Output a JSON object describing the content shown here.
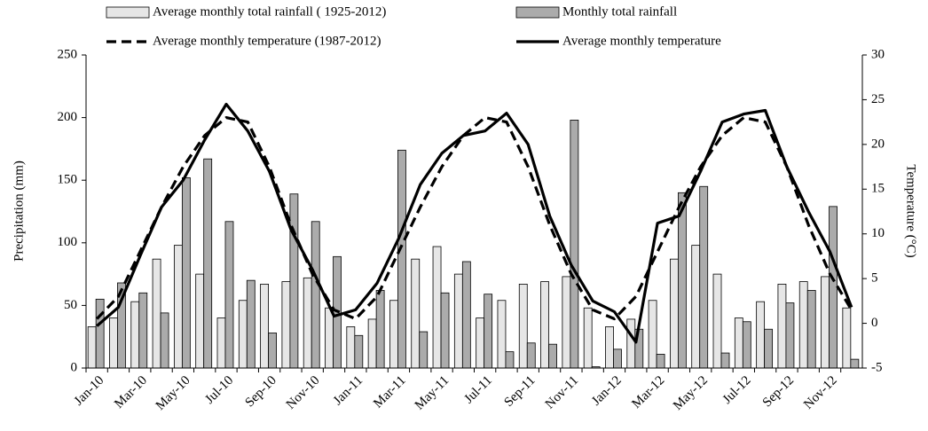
{
  "chart_data": {
    "type": "combo",
    "categories": [
      "Jan-10",
      null,
      "Mar-10",
      null,
      "May-10",
      null,
      "Jul-10",
      null,
      "Sep-10",
      null,
      "Nov-10",
      null,
      "Jan-11",
      null,
      "Mar-11",
      null,
      "May-11",
      null,
      "Jul-11",
      null,
      "Sep-11",
      null,
      "Nov-11",
      null,
      "Jan-12",
      null,
      "Mar-12",
      null,
      "May-12",
      null,
      "Jul-12",
      null,
      "Sep-12",
      null,
      "Nov-12",
      null
    ],
    "ylabel": "Precipitation  (mm)",
    "y2label": "Temperature  (°C)",
    "ylim": [
      0,
      250
    ],
    "yticks": [
      0,
      50,
      100,
      150,
      200,
      250
    ],
    "y2lim": [
      -5,
      30
    ],
    "y2ticks": [
      -5,
      0,
      5,
      10,
      15,
      20,
      25,
      30
    ],
    "series": [
      {
        "name": "Average monthly total rainfall ( 1925-2012)",
        "type": "bar",
        "color": "#e6e6e6",
        "values": [
          33,
          40,
          53,
          87,
          98,
          75,
          40,
          54,
          67,
          69,
          72,
          48,
          33,
          39,
          54,
          87,
          97,
          75,
          40,
          54,
          67,
          69,
          73,
          48,
          33,
          39,
          54,
          87,
          98,
          75,
          40,
          53,
          67,
          69,
          73,
          48
        ]
      },
      {
        "name": "Monthly total rainfall",
        "type": "bar",
        "color": "#ababab",
        "values": [
          55,
          68,
          60,
          44,
          152,
          167,
          117,
          70,
          28,
          139,
          117,
          89,
          26,
          62,
          174,
          29,
          60,
          85,
          59,
          13,
          20,
          19,
          198,
          1,
          15,
          31,
          11,
          140,
          145,
          12,
          37,
          31,
          52,
          62,
          129,
          7
        ]
      },
      {
        "name": "Average monthly temperature (1987-2012)",
        "type": "line",
        "axis": "y2",
        "color": "#000000",
        "line_style": "dashed",
        "values": [
          0.5,
          3,
          8,
          13,
          17.5,
          21,
          23,
          22.5,
          17.5,
          11,
          5.5,
          1.5,
          0.5,
          3,
          8,
          13,
          17.5,
          21,
          23,
          22.5,
          17.5,
          11,
          5.5,
          1.5,
          0.5,
          3,
          8,
          13,
          17.5,
          21,
          23,
          22.5,
          17.5,
          11,
          5.5,
          1.5
        ]
      },
      {
        "name": "Average monthly temperature",
        "type": "line",
        "axis": "y2",
        "color": "#000000",
        "line_style": "solid",
        "values": [
          -0.3,
          1.8,
          7.5,
          13,
          16,
          20.5,
          24.5,
          21.5,
          17,
          10.5,
          6,
          0.8,
          1.5,
          4.5,
          9.5,
          15.5,
          19,
          21,
          21.5,
          23.5,
          20,
          12,
          6.5,
          2.5,
          1.3,
          -2.1,
          11.2,
          12,
          17,
          22.5,
          23.4,
          23.8,
          17.5,
          12.5,
          8,
          1.8
        ]
      }
    ]
  }
}
